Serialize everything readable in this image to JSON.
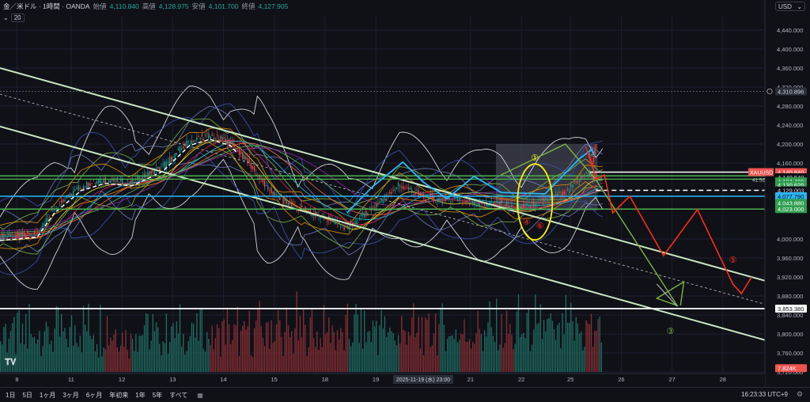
{
  "header": {
    "symbol": "金／米ドル · 1時間 · OANDA",
    "open_label": "始値",
    "open_value": "4,110.840",
    "high_label": "高値",
    "high_value": "4,128.975",
    "low_label": "安値",
    "low_value": "4,101.700",
    "close_label": "終値",
    "close_value": "4,127.905"
  },
  "indicator": {
    "period": "20",
    "toggle_icon": "chevron-down-icon"
  },
  "currency": {
    "label": "USD",
    "icon": "chevron-down-icon"
  },
  "timeframes": [
    "1日",
    "5日",
    "1ヶ月",
    "3ヶ月",
    "6ヶ月",
    "年初来",
    "1年",
    "5年",
    "すべて"
  ],
  "clock": "16:23:33 UTC+9",
  "colors": {
    "background": "#0f1117",
    "bull": "#26a69a",
    "bear": "#ef5350",
    "channel": "#c8e6c0",
    "drawing_red": "#ff2a1a",
    "drawing_green": "#7cb342",
    "drawing_cyan": "#29b6f6",
    "ellipse": "#fff200"
  },
  "chart_data": {
    "type": "candlestick",
    "symbol_label": "XAUUSD",
    "x_ticks": [
      {
        "label": "8",
        "i": 10
      },
      {
        "label": "11",
        "i": 42
      },
      {
        "label": "12",
        "i": 72
      },
      {
        "label": "13",
        "i": 102
      },
      {
        "label": "14",
        "i": 132
      },
      {
        "label": "15",
        "i": 162
      },
      {
        "label": "18",
        "i": 192
      },
      {
        "label": "19",
        "i": 222
      },
      {
        "label": "21",
        "i": 278
      },
      {
        "label": "22",
        "i": 308
      },
      {
        "label": "25",
        "i": 337
      },
      {
        "label": "26",
        "i": 367
      },
      {
        "label": "27",
        "i": 397
      },
      {
        "label": "28",
        "i": 427
      }
    ],
    "crosshair_date": "2025-11-19 (水)  23:00",
    "crosshair_i": 250,
    "ylim": [
      3720,
      4470
    ],
    "y_ticks": [
      4440,
      4400,
      4360,
      4320,
      4280,
      4240,
      4200,
      4160,
      4000,
      3960,
      3920,
      3880,
      3840,
      3800,
      3760,
      3720
    ],
    "y_tick_labels": [
      "4,440.000",
      "4,400.000",
      "4,360.000",
      "4,320.000",
      "4,280.000",
      "4,240.000",
      "4,200.000",
      "4,160.000",
      "4,000.000",
      "3,960.000",
      "3,920.000",
      "3,880.000",
      "3,840.000",
      "3,800.000",
      "3,760.000",
      "3,720.000"
    ],
    "price_path": [
      [
        0,
        4005
      ],
      [
        10,
        4008
      ],
      [
        22,
        4012
      ],
      [
        32,
        4062
      ],
      [
        48,
        4110
      ],
      [
        62,
        4125
      ],
      [
        78,
        4120
      ],
      [
        96,
        4150
      ],
      [
        112,
        4205
      ],
      [
        124,
        4218
      ],
      [
        136,
        4205
      ],
      [
        148,
        4158
      ],
      [
        158,
        4108
      ],
      [
        168,
        4080
      ],
      [
        182,
        4058
      ],
      [
        196,
        4040
      ],
      [
        206,
        4022
      ],
      [
        214,
        4047
      ],
      [
        226,
        4082
      ],
      [
        236,
        4113
      ],
      [
        248,
        4095
      ],
      [
        260,
        4080
      ],
      [
        272,
        4085
      ],
      [
        284,
        4070
      ],
      [
        296,
        4076
      ],
      [
        304,
        4063
      ],
      [
        314,
        4072
      ],
      [
        324,
        4083
      ],
      [
        336,
        4100
      ],
      [
        346,
        4138
      ],
      [
        354,
        4127
      ]
    ],
    "candle_end_i": 356,
    "volume_max": 1000,
    "price_labels": [
      {
        "text": "4,310.896",
        "price": 4310.896,
        "bg": "#2a2e39",
        "fg": "#d1d4dc"
      },
      {
        "text": "4,140.840",
        "price": 4140.84,
        "bg": "#ef5350",
        "fg": "#ffffff"
      },
      {
        "text": "4,140.540",
        "price": 4130.0,
        "bg": "#0f1117",
        "fg": "#d1d4dc"
      },
      {
        "text": "4,134.400",
        "price": 4121.5,
        "bg": "#2e9e4f",
        "fg": "#ffffff"
      },
      {
        "text": "4,130.620",
        "price": 4114.0,
        "bg": "#2e9e4f",
        "fg": "#ffffff"
      },
      {
        "text": "4,129.003",
        "price": 4102.5,
        "bg": "#0f1117",
        "fg": "#d1d4dc"
      },
      {
        "text": "4,077.790",
        "price": 4090.0,
        "bg": "#29b6f6",
        "fg": "#0f1117"
      },
      {
        "text": "4,043.880",
        "price": 4076.0,
        "bg": "#2e9e4f",
        "fg": "#ffffff"
      },
      {
        "text": "4,023.000",
        "price": 4063.0,
        "bg": "#2e9e4f",
        "fg": "#ffffff"
      },
      {
        "text": "3,853.380",
        "price": 3853.38,
        "bg": "#ffffff",
        "fg": "#0f1117"
      },
      {
        "text": "7,824K",
        "price": 3728,
        "bg": "#ef5350",
        "fg": "#ffffff"
      }
    ],
    "symbol_price": 4140.84,
    "symbol_sub": "41:52",
    "annotations": [
      "①",
      "②",
      "③",
      "④",
      "⑤",
      "⑥"
    ]
  }
}
